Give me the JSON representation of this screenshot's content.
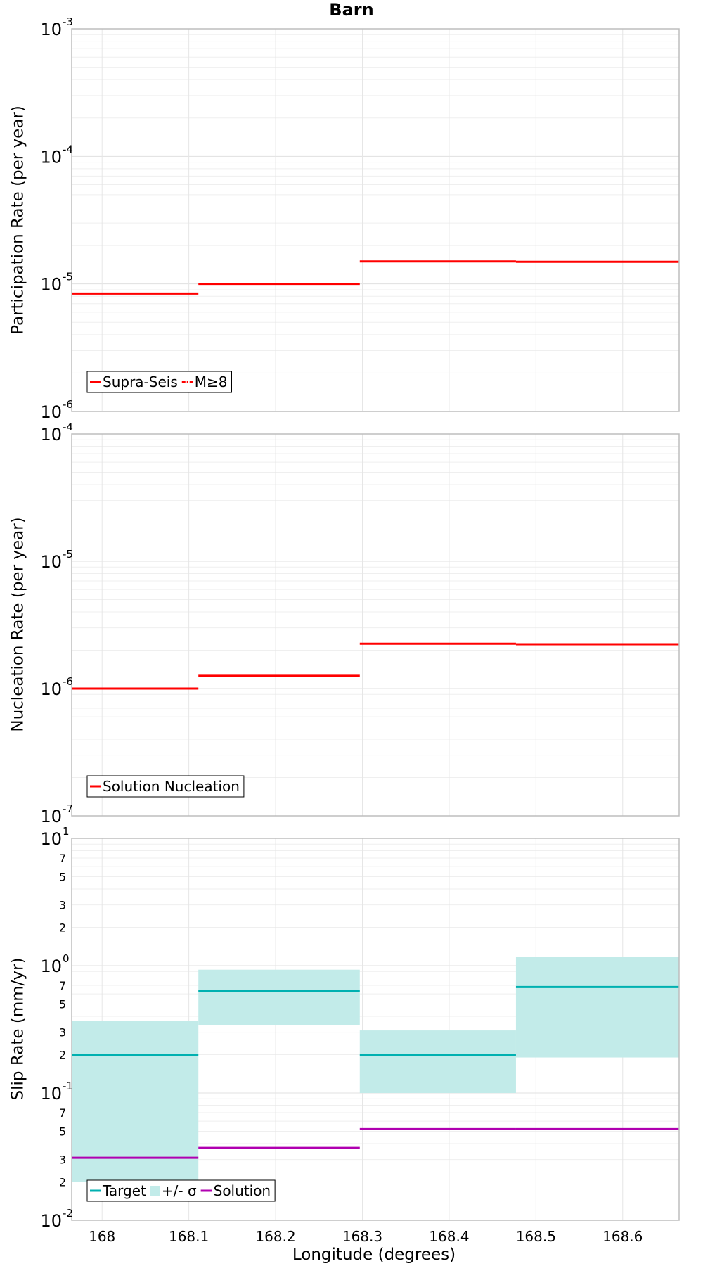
{
  "chart_data": {
    "title": "Barn",
    "xlabel": "Longitude (degrees)",
    "xlim": [
      167.965,
      168.665
    ],
    "xticks": [
      168,
      168.1,
      168.2,
      168.3,
      168.4,
      168.5,
      168.6
    ],
    "xtick_labels": [
      "168",
      "168.1",
      "168.2",
      "168.3",
      "168.4",
      "168.5",
      "168.6"
    ],
    "grid": true,
    "panels": [
      {
        "type": "line",
        "scale": "log",
        "ylabel": "Participation Rate (per year)",
        "ylim": [
          1e-06,
          0.001
        ],
        "ticks": [
          {
            "value": 1e-06,
            "base": "10",
            "exp": "-6"
          },
          {
            "value": 1e-05,
            "base": "10",
            "exp": "-5"
          },
          {
            "value": 0.0001,
            "base": "10",
            "exp": "-4"
          },
          {
            "value": 0.001,
            "base": "10",
            "exp": "-3"
          }
        ],
        "minor_ticks": [],
        "series": [
          {
            "name": "Supra-Seis",
            "color": "#ff0000",
            "style": "solid",
            "segments": [
              {
                "x0": 167.965,
                "x1": 168.111,
                "y": 8.4e-06
              },
              {
                "x0": 168.111,
                "x1": 168.297,
                "y": 1e-05
              },
              {
                "x0": 168.297,
                "x1": 168.477,
                "y": 1.5e-05
              },
              {
                "x0": 168.477,
                "x1": 168.665,
                "y": 1.49e-05
              }
            ]
          },
          {
            "name": "M≥8",
            "color": "#ff0000",
            "style": "dashdot",
            "segments": []
          }
        ],
        "legend": {
          "placement": "bottom-left"
        }
      },
      {
        "type": "line",
        "scale": "log",
        "ylabel": "Nucleation Rate (per year)",
        "ylim": [
          1e-07,
          0.0001
        ],
        "ticks": [
          {
            "value": 1e-07,
            "base": "10",
            "exp": "-7"
          },
          {
            "value": 1e-06,
            "base": "10",
            "exp": "-6"
          },
          {
            "value": 1e-05,
            "base": "10",
            "exp": "-5"
          },
          {
            "value": 0.0001,
            "base": "10",
            "exp": "-4"
          }
        ],
        "minor_ticks": [],
        "series": [
          {
            "name": "Solution Nucleation",
            "color": "#ff0000",
            "style": "solid",
            "segments": [
              {
                "x0": 167.965,
                "x1": 168.111,
                "y": 1e-06
              },
              {
                "x0": 168.111,
                "x1": 168.297,
                "y": 1.26e-06
              },
              {
                "x0": 168.297,
                "x1": 168.477,
                "y": 2.25e-06
              },
              {
                "x0": 168.477,
                "x1": 168.665,
                "y": 2.23e-06
              }
            ]
          }
        ],
        "legend": {
          "placement": "bottom-left"
        }
      },
      {
        "type": "line",
        "scale": "log",
        "ylabel": "Slip Rate (mm/yr)",
        "ylim": [
          0.01,
          10
        ],
        "ticks": [
          {
            "value": 0.01,
            "base": "10",
            "exp": "-2"
          },
          {
            "value": 0.1,
            "base": "10",
            "exp": "-1"
          },
          {
            "value": 1,
            "base": "10",
            "exp": "0"
          },
          {
            "value": 10,
            "base": "10",
            "exp": "1"
          }
        ],
        "minor_ticks": [
          {
            "value": 0.02,
            "label": "2"
          },
          {
            "value": 0.03,
            "label": "3"
          },
          {
            "value": 0.05,
            "label": "5"
          },
          {
            "value": 0.07,
            "label": "7"
          },
          {
            "value": 0.2,
            "label": "2"
          },
          {
            "value": 0.3,
            "label": "3"
          },
          {
            "value": 0.5,
            "label": "5"
          },
          {
            "value": 0.7,
            "label": "7"
          },
          {
            "value": 2,
            "label": "2"
          },
          {
            "value": 3,
            "label": "3"
          },
          {
            "value": 5,
            "label": "5"
          },
          {
            "value": 7,
            "label": "7"
          }
        ],
        "series": [
          {
            "name": "Target",
            "color": "#00b0b0",
            "style": "solid",
            "segments": [
              {
                "x0": 167.965,
                "x1": 168.111,
                "y": 0.2
              },
              {
                "x0": 168.111,
                "x1": 168.297,
                "y": 0.63
              },
              {
                "x0": 168.297,
                "x1": 168.477,
                "y": 0.2
              },
              {
                "x0": 168.477,
                "x1": 168.665,
                "y": 0.68
              }
            ]
          },
          {
            "name": "+/- σ",
            "color": "#c2ebe9",
            "style": "band",
            "segments": [
              {
                "x0": 167.965,
                "x1": 168.111,
                "ylo": 0.02,
                "yhi": 0.37
              },
              {
                "x0": 168.111,
                "x1": 168.297,
                "ylo": 0.34,
                "yhi": 0.93
              },
              {
                "x0": 168.297,
                "x1": 168.477,
                "ylo": 0.1,
                "yhi": 0.31
              },
              {
                "x0": 168.477,
                "x1": 168.665,
                "ylo": 0.19,
                "yhi": 1.17
              }
            ]
          },
          {
            "name": "Solution",
            "color": "#b000b0",
            "style": "solid",
            "segments": [
              {
                "x0": 167.965,
                "x1": 168.111,
                "y": 0.031
              },
              {
                "x0": 168.111,
                "x1": 168.297,
                "y": 0.037
              },
              {
                "x0": 168.297,
                "x1": 168.477,
                "y": 0.052
              },
              {
                "x0": 168.477,
                "x1": 168.665,
                "y": 0.052
              }
            ]
          }
        ],
        "legend": {
          "placement": "bottom-left"
        }
      }
    ]
  }
}
